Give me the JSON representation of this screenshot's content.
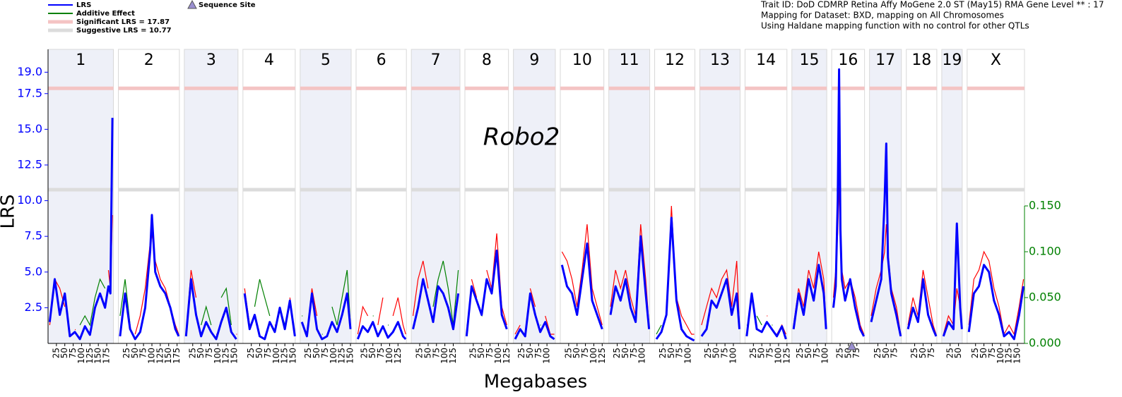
{
  "chart_data": {
    "type": "line",
    "info": [
      "Trait ID: DoD CDMRP Retina Affy MoGene 2.0 ST (May15) RMA Gene Level ** : 17",
      "Mapping for Dataset: BXD, mapping on All Chromosomes",
      "Using Haldane mapping function with no control for other QTLs"
    ],
    "annotation": "Robo2",
    "x_label": "Megabases",
    "y_label": "LRS",
    "ylim": [
      0,
      20.6
    ],
    "yticks": [
      2.5,
      {
        "value": 5,
        "label": "5.0"
      },
      7.5,
      {
        "value": 10,
        "label": "10.0"
      },
      12.5,
      {
        "value": 15,
        "label": "15.0"
      },
      17.5,
      {
        "value": 19,
        "label": "19.0"
      }
    ],
    "y2lim": [
      0,
      0.3208
    ],
    "y2ticks": [
      {
        "value": 0,
        "label": "0.000"
      },
      {
        "value": 0.05,
        "label": "0.050"
      },
      {
        "value": 0.1,
        "label": "0.100"
      },
      {
        "value": 0.15,
        "label": "0.150"
      }
    ],
    "series": [
      {
        "name": "LRS",
        "color": "#0000ff"
      },
      {
        "name": "Additive Effect",
        "color": "#008000",
        "positive_color": "#ff0000",
        "axis": "y2"
      }
    ],
    "significant": {
      "label": "Significant LRS = 17.87",
      "value": 17.87,
      "color": "#f4c4c4"
    },
    "suggestive": {
      "label": "Suggestive LRS = 10.77",
      "value": 10.77,
      "color": "#dcdcdc"
    },
    "sequence_site": {
      "label": "Sequence Site",
      "chromosome": "16",
      "position": 60,
      "color": "#9a8fd0"
    },
    "chromosomes": [
      {
        "name": "1",
        "length": 195,
        "xticks": [
          25,
          50,
          75,
          100,
          125,
          150,
          175
        ],
        "x": [
          5,
          20,
          35,
          50,
          65,
          80,
          95,
          110,
          125,
          140,
          155,
          170,
          180,
          186,
          192
        ],
        "lrs": [
          1.5,
          4.5,
          2.0,
          3.5,
          0.5,
          0.8,
          0.3,
          1.2,
          0.6,
          2.5,
          3.5,
          2.5,
          4.0,
          3.5,
          15.8
        ],
        "additive": [
          0.02,
          0.07,
          0.06,
          0.04,
          -0.01,
          0.015,
          -0.02,
          -0.03,
          -0.02,
          -0.05,
          -0.07,
          -0.06,
          0.08,
          0.06,
          0.14
        ]
      },
      {
        "name": "2",
        "length": 182,
        "xticks": [
          25,
          50,
          75,
          100,
          125,
          150,
          175
        ],
        "x": [
          5,
          20,
          35,
          50,
          65,
          80,
          95,
          100,
          110,
          125,
          140,
          155,
          170,
          180
        ],
        "lrs": [
          0.5,
          3.5,
          1.0,
          0.3,
          0.8,
          2.5,
          6.5,
          9.0,
          5.0,
          4.0,
          3.5,
          2.5,
          1.0,
          0.5
        ],
        "additive": [
          -0.03,
          -0.07,
          -0.02,
          0.01,
          0.03,
          0.06,
          0.11,
          0.12,
          0.09,
          0.07,
          0.06,
          0.04,
          0.02,
          0.01
        ]
      },
      {
        "name": "3",
        "length": 160,
        "xticks": [
          25,
          50,
          75,
          100,
          125,
          150
        ],
        "x": [
          5,
          20,
          35,
          50,
          65,
          80,
          95,
          110,
          125,
          140,
          155
        ],
        "lrs": [
          0.5,
          4.5,
          2.0,
          0.5,
          1.5,
          0.8,
          0.3,
          1.5,
          2.5,
          0.8,
          0.3
        ],
        "additive": [
          0.01,
          0.08,
          0.05,
          -0.02,
          -0.04,
          -0.02,
          0.01,
          -0.05,
          -0.06,
          -0.02,
          0.01
        ]
      },
      {
        "name": "4",
        "length": 156,
        "xticks": [
          25,
          50,
          75,
          100,
          125,
          150
        ],
        "x": [
          5,
          20,
          35,
          50,
          65,
          80,
          95,
          110,
          125,
          140,
          155
        ],
        "lrs": [
          3.5,
          1.0,
          2.0,
          0.5,
          0.3,
          1.5,
          0.8,
          2.5,
          1.0,
          3.0,
          0.5
        ],
        "additive": [
          0.06,
          0.02,
          -0.04,
          -0.07,
          -0.05,
          -0.03,
          0.02,
          -0.04,
          -0.02,
          0.05,
          0.01
        ]
      },
      {
        "name": "5",
        "length": 152,
        "xticks": [
          25,
          50,
          75,
          100,
          125,
          150
        ],
        "x": [
          5,
          20,
          35,
          50,
          65,
          80,
          95,
          110,
          125,
          140,
          150
        ],
        "lrs": [
          1.5,
          0.5,
          3.5,
          1.0,
          0.3,
          0.5,
          1.5,
          0.8,
          2.0,
          3.5,
          1.0
        ],
        "additive": [
          -0.03,
          0.01,
          0.06,
          0.03,
          -0.01,
          0.01,
          -0.04,
          -0.02,
          -0.05,
          -0.08,
          -0.02
        ]
      },
      {
        "name": "6",
        "length": 150,
        "xticks": [
          25,
          50,
          75,
          100,
          125
        ],
        "x": [
          5,
          20,
          35,
          50,
          65,
          80,
          95,
          110,
          125,
          140,
          148
        ],
        "lrs": [
          0.3,
          1.2,
          0.8,
          1.5,
          0.5,
          1.2,
          0.4,
          0.8,
          1.5,
          0.5,
          0.3
        ],
        "additive": [
          0.01,
          0.04,
          0.03,
          -0.03,
          0.02,
          0.05,
          -0.02,
          0.03,
          0.05,
          0.02,
          0.01
        ]
      },
      {
        "name": "7",
        "length": 145,
        "xticks": [
          25,
          50,
          75,
          100,
          125
        ],
        "x": [
          5,
          20,
          35,
          50,
          65,
          80,
          95,
          110,
          125,
          140
        ],
        "lrs": [
          1.0,
          2.5,
          4.5,
          3.0,
          1.5,
          4.0,
          3.5,
          2.5,
          1.0,
          3.5
        ],
        "additive": [
          0.03,
          0.07,
          0.09,
          0.06,
          -0.04,
          -0.07,
          -0.09,
          -0.06,
          -0.02,
          -0.08
        ]
      },
      {
        "name": "8",
        "length": 130,
        "xticks": [
          25,
          50,
          75,
          100,
          125
        ],
        "x": [
          5,
          20,
          35,
          50,
          65,
          80,
          95,
          110,
          125
        ],
        "lrs": [
          0.5,
          4.0,
          3.0,
          2.0,
          4.5,
          3.5,
          6.5,
          2.0,
          1.0
        ],
        "additive": [
          -0.02,
          0.07,
          0.05,
          -0.03,
          0.08,
          0.06,
          0.12,
          0.04,
          0.02
        ]
      },
      {
        "name": "9",
        "length": 125,
        "xticks": [
          25,
          50,
          75,
          100
        ],
        "x": [
          5,
          20,
          35,
          50,
          65,
          80,
          95,
          110,
          122
        ],
        "lrs": [
          0.3,
          1.0,
          0.5,
          3.5,
          2.0,
          0.8,
          1.5,
          0.5,
          0.3
        ],
        "additive": [
          0.01,
          0.02,
          -0.01,
          0.06,
          0.04,
          -0.02,
          0.03,
          0.01,
          0.01
        ]
      },
      {
        "name": "10",
        "length": 130,
        "xticks": [
          25,
          50,
          75,
          100,
          125
        ],
        "x": [
          5,
          20,
          35,
          50,
          65,
          80,
          95,
          110,
          125
        ],
        "lrs": [
          5.5,
          4.0,
          3.5,
          2.0,
          4.5,
          7.0,
          3.0,
          2.0,
          1.0
        ],
        "additive": [
          0.1,
          0.09,
          0.07,
          0.04,
          0.08,
          0.13,
          0.06,
          0.04,
          0.02
        ]
      },
      {
        "name": "11",
        "length": 122,
        "xticks": [
          25,
          50,
          75,
          100
        ],
        "x": [
          5,
          20,
          35,
          50,
          65,
          80,
          95,
          110,
          120
        ],
        "lrs": [
          2.0,
          4.0,
          3.0,
          4.5,
          2.5,
          1.5,
          7.5,
          3.5,
          1.0
        ],
        "additive": [
          0.04,
          0.08,
          0.06,
          0.08,
          0.05,
          0.03,
          0.13,
          0.07,
          0.02
        ]
      },
      {
        "name": "12",
        "length": 120,
        "xticks": [
          25,
          50,
          75,
          100
        ],
        "x": [
          5,
          20,
          35,
          50,
          65,
          80,
          95,
          110,
          118
        ],
        "lrs": [
          0.3,
          0.8,
          2.0,
          8.8,
          3.0,
          1.0,
          0.5,
          0.3,
          0.2
        ],
        "additive": [
          -0.01,
          -0.02,
          0.03,
          0.15,
          0.05,
          0.03,
          0.02,
          0.01,
          0.01
        ]
      },
      {
        "name": "13",
        "length": 120,
        "xticks": [
          25,
          50,
          75,
          100
        ],
        "x": [
          5,
          20,
          35,
          50,
          65,
          80,
          95,
          110,
          118
        ],
        "lrs": [
          0.5,
          1.0,
          3.0,
          2.5,
          3.5,
          4.5,
          2.0,
          3.5,
          1.0
        ],
        "additive": [
          0.02,
          0.04,
          0.06,
          0.05,
          0.07,
          0.08,
          0.04,
          0.09,
          0.02
        ]
      },
      {
        "name": "14",
        "length": 125,
        "xticks": [
          25,
          50,
          75,
          100,
          125
        ],
        "x": [
          5,
          20,
          35,
          50,
          65,
          80,
          95,
          110,
          122
        ],
        "lrs": [
          0.5,
          3.5,
          1.0,
          0.8,
          1.5,
          1.0,
          0.5,
          1.2,
          0.3
        ],
        "additive": [
          -0.02,
          0.05,
          -0.03,
          -0.02,
          0.03,
          -0.02,
          0.01,
          0.02,
          0.01
        ]
      },
      {
        "name": "15",
        "length": 104,
        "xticks": [
          25,
          50,
          75,
          100
        ],
        "x": [
          5,
          20,
          35,
          50,
          65,
          80,
          95,
          102
        ],
        "lrs": [
          1.0,
          3.5,
          2.0,
          4.5,
          3.0,
          5.5,
          3.5,
          1.0
        ],
        "additive": [
          0.02,
          0.06,
          0.04,
          0.08,
          0.06,
          0.1,
          0.07,
          0.02
        ]
      },
      {
        "name": "16",
        "length": 98,
        "xticks": [
          25,
          50,
          75
        ],
        "x": [
          5,
          12,
          18,
          22,
          26,
          30,
          40,
          55,
          70,
          85,
          96
        ],
        "lrs": [
          2.5,
          4.0,
          10.0,
          19.2,
          8.0,
          4.5,
          3.0,
          4.5,
          2.5,
          1.0,
          0.5
        ],
        "additive": [
          0.05,
          0.08,
          0.12,
          0.17,
          0.13,
          0.08,
          0.06,
          0.07,
          0.05,
          0.02,
          0.01
        ]
      },
      {
        "name": "17",
        "length": 95,
        "xticks": [
          25,
          50,
          75
        ],
        "x": [
          5,
          20,
          35,
          45,
          50,
          55,
          65,
          80,
          93
        ],
        "lrs": [
          1.5,
          3.0,
          4.5,
          10.0,
          14.0,
          6.0,
          3.5,
          2.0,
          0.5
        ],
        "additive": [
          0.03,
          0.06,
          0.08,
          0.1,
          0.13,
          0.1,
          0.06,
          0.04,
          0.01
        ]
      },
      {
        "name": "18",
        "length": 91,
        "xticks": [
          25,
          50,
          75
        ],
        "x": [
          5,
          20,
          35,
          50,
          65,
          80,
          89
        ],
        "lrs": [
          1.0,
          2.5,
          1.5,
          4.5,
          2.0,
          1.0,
          0.5
        ],
        "additive": [
          0.02,
          0.05,
          0.03,
          0.08,
          0.05,
          0.02,
          0.01
        ]
      },
      {
        "name": "19",
        "length": 61,
        "xticks": [
          25,
          50
        ],
        "x": [
          5,
          20,
          35,
          45,
          55,
          60
        ],
        "lrs": [
          0.5,
          1.5,
          1.0,
          8.4,
          2.5,
          1.0
        ],
        "additive": [
          0.01,
          0.03,
          0.02,
          0.06,
          0.04,
          0.02
        ]
      },
      {
        "name": "X",
        "length": 171,
        "xticks": [
          25,
          50,
          75,
          100,
          125,
          150
        ],
        "x": [
          5,
          20,
          35,
          50,
          65,
          80,
          95,
          110,
          125,
          140,
          155,
          168
        ],
        "lrs": [
          0.8,
          3.5,
          4.0,
          5.5,
          5.0,
          3.0,
          2.0,
          0.5,
          0.8,
          0.3,
          2.0,
          4.0
        ],
        "additive": [
          0.02,
          0.07,
          0.08,
          0.1,
          0.09,
          0.06,
          0.04,
          0.01,
          0.02,
          0.01,
          0.04,
          0.07
        ]
      }
    ]
  }
}
